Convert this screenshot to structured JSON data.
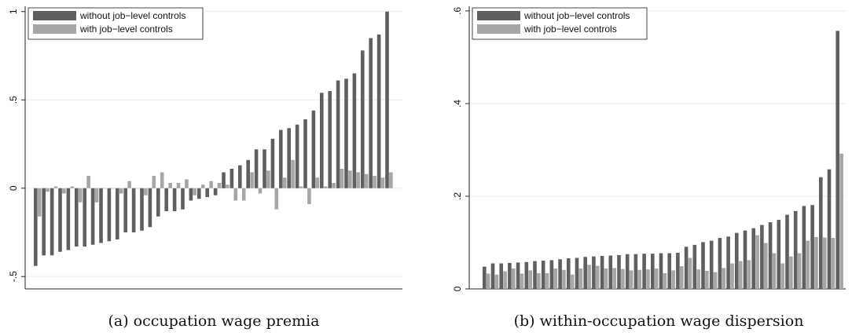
{
  "chart_data": [
    {
      "type": "bar",
      "title": "",
      "xlabel": "",
      "ylabel": "",
      "ylim": [
        -0.57,
        1.03
      ],
      "yticks": [
        {
          "v": -0.5,
          "label": "-.5"
        },
        {
          "v": 0,
          "label": "0"
        },
        {
          "v": 0.5,
          "label": ".5"
        },
        {
          "v": 1,
          "label": "1"
        }
      ],
      "grid": true,
      "legend_position": "top-left",
      "series": [
        {
          "name": "without job−level controls",
          "color": "#5f5f5f",
          "values": [
            -0.44,
            -0.38,
            -0.38,
            -0.36,
            -0.35,
            -0.33,
            -0.33,
            -0.32,
            -0.31,
            -0.3,
            -0.29,
            -0.25,
            -0.25,
            -0.24,
            -0.22,
            -0.16,
            -0.13,
            -0.13,
            -0.12,
            -0.07,
            -0.06,
            -0.05,
            -0.04,
            0.09,
            0.11,
            0.13,
            0.16,
            0.22,
            0.22,
            0.28,
            0.33,
            0.34,
            0.36,
            0.39,
            0.44,
            0.54,
            0.55,
            0.61,
            0.62,
            0.65,
            0.78,
            0.85,
            0.87,
            1.0
          ]
        },
        {
          "name": "with job−level controls",
          "color": "#a6a6a6",
          "values": [
            -0.16,
            -0.02,
            0.01,
            -0.03,
            0.01,
            -0.08,
            0.07,
            -0.08,
            0.0,
            0.0,
            -0.03,
            0.04,
            0.0,
            -0.04,
            0.07,
            0.09,
            0.03,
            0.03,
            0.05,
            -0.04,
            0.02,
            0.04,
            0.03,
            0.02,
            -0.07,
            -0.07,
            0.09,
            -0.03,
            0.1,
            -0.12,
            0.06,
            0.16,
            0.01,
            -0.09,
            0.06,
            0.01,
            0.03,
            0.11,
            0.1,
            0.09,
            0.08,
            0.07,
            0.06,
            0.09
          ]
        }
      ],
      "caption": "(a) occupation wage premia"
    },
    {
      "type": "bar",
      "title": "",
      "xlabel": "",
      "ylabel": "",
      "ylim": [
        0,
        0.61
      ],
      "yticks": [
        {
          "v": 0,
          "label": "0"
        },
        {
          "v": 0.2,
          "label": ".2"
        },
        {
          "v": 0.4,
          "label": ".4"
        },
        {
          "v": 0.6,
          "label": ".6"
        }
      ],
      "grid": true,
      "legend_position": "top-left",
      "series": [
        {
          "name": "without job−level controls",
          "color": "#5f5f5f",
          "values": [
            0.048,
            0.055,
            0.055,
            0.056,
            0.057,
            0.058,
            0.06,
            0.061,
            0.062,
            0.064,
            0.066,
            0.067,
            0.069,
            0.07,
            0.071,
            0.072,
            0.073,
            0.075,
            0.075,
            0.076,
            0.076,
            0.077,
            0.077,
            0.078,
            0.091,
            0.095,
            0.101,
            0.104,
            0.11,
            0.113,
            0.121,
            0.126,
            0.131,
            0.138,
            0.144,
            0.149,
            0.16,
            0.168,
            0.179,
            0.181,
            0.241,
            0.258,
            0.557
          ]
        },
        {
          "name": "with job−level controls",
          "color": "#a6a6a6",
          "values": [
            0.033,
            0.031,
            0.038,
            0.044,
            0.033,
            0.04,
            0.034,
            0.034,
            0.044,
            0.041,
            0.031,
            0.044,
            0.052,
            0.05,
            0.044,
            0.045,
            0.043,
            0.04,
            0.041,
            0.042,
            0.044,
            0.034,
            0.04,
            0.049,
            0.067,
            0.042,
            0.039,
            0.036,
            0.045,
            0.055,
            0.06,
            0.062,
            0.116,
            0.099,
            0.077,
            0.055,
            0.07,
            0.077,
            0.104,
            0.112,
            0.111,
            0.11,
            0.292
          ]
        }
      ],
      "caption": "(b) within-occupation wage dispersion"
    }
  ]
}
